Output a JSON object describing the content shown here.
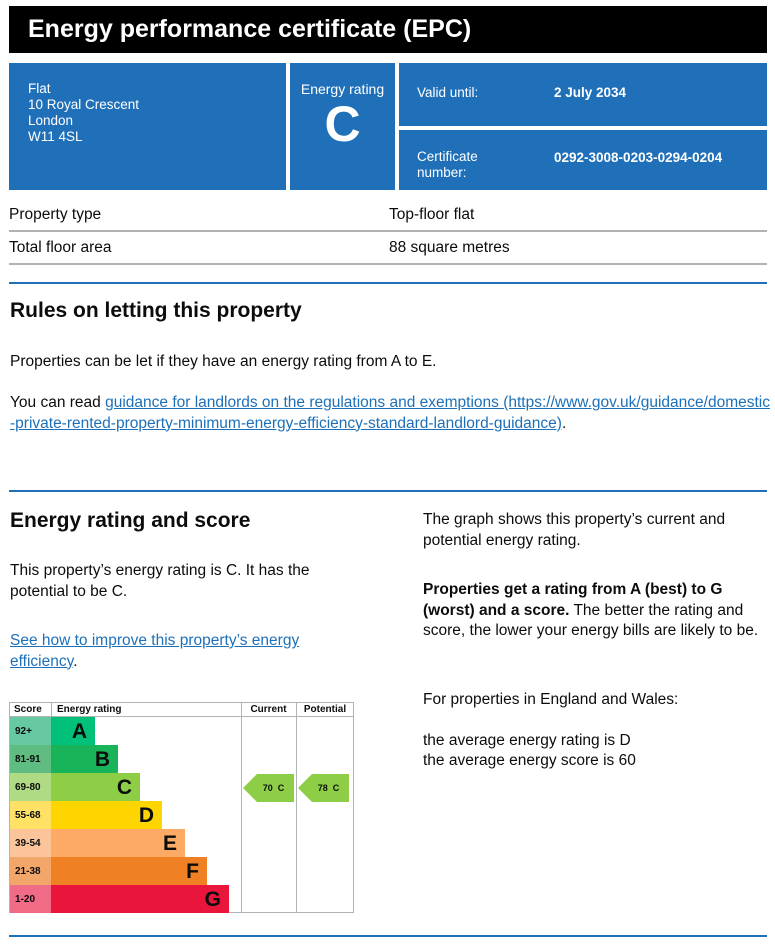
{
  "title": "Energy performance certificate (EPC)",
  "address": [
    "Flat",
    "10 Royal Crescent",
    "London",
    "W11 4SL"
  ],
  "energy_rating": {
    "label": "Energy rating",
    "value": "C"
  },
  "valid_until": {
    "label": "Valid until:",
    "value": "2 July 2034"
  },
  "certificate": {
    "label": "Certificate number:",
    "value": "0292-3008-0203-0294-0204"
  },
  "property": [
    {
      "label": "Property type",
      "value": "Top-floor flat"
    },
    {
      "label": "Total floor area",
      "value": "88 square metres"
    }
  ],
  "rules": {
    "heading": "Rules on letting this property",
    "text": "Properties can be let if they have an energy rating from A to E.",
    "read_prefix": "You can read ",
    "link": "guidance for landlords on the regulations and exemptions (https://www.gov.uk/guidance/domestic-private-rented-property-minimum-energy-efficiency-standard-landlord-guidance)",
    "read_suffix": "."
  },
  "rating_section": {
    "heading": "Energy rating and score",
    "text": "This property’s energy rating is C. It has the potential to be C.",
    "link": "See how to improve this property’s energy efficiency",
    "link_suffix": ".",
    "graph_text": "The graph shows this property’s current and potential energy rating.",
    "bold_text": "Properties get a rating from A (best) to G (worst) and a score.",
    "rest_text": " The better the rating and score, the lower your energy bills are likely to be.",
    "region_text": "For properties in England and Wales:",
    "avg_rating": "the average energy rating is D",
    "avg_score": "the average energy score is 60"
  },
  "chart_data": {
    "type": "bar",
    "headers": {
      "score": "Score",
      "rating": "Energy rating",
      "current": "Current",
      "potential": "Potential"
    },
    "bands": [
      {
        "band": "A",
        "range": "92+",
        "color": "#00c07a",
        "light": "#66c9a2"
      },
      {
        "band": "B",
        "range": "81-91",
        "color": "#19b459",
        "light": "#5fbd81"
      },
      {
        "band": "C",
        "range": "69-80",
        "color": "#8dce46",
        "light": "#b0db85"
      },
      {
        "band": "D",
        "range": "55-68",
        "color": "#ffd500",
        "light": "#ffe166"
      },
      {
        "band": "E",
        "range": "39-54",
        "color": "#fcaa65",
        "light": "#fcc49a"
      },
      {
        "band": "F",
        "range": "21-38",
        "color": "#ef8023",
        "light": "#f3a66a"
      },
      {
        "band": "G",
        "range": "1-20",
        "color": "#e9153b",
        "light": "#ef6b86"
      }
    ],
    "current": {
      "score": 70,
      "band": "C",
      "label": "70  C"
    },
    "potential": {
      "score": 78,
      "band": "C",
      "label": "78  C"
    }
  }
}
